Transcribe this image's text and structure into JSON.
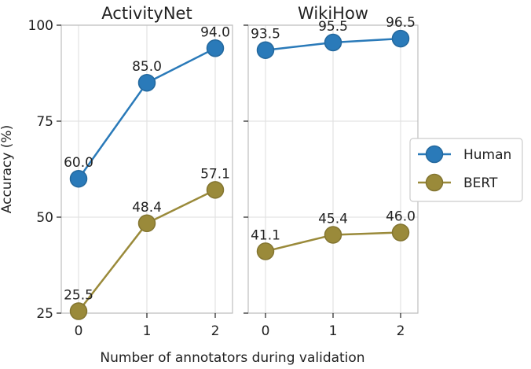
{
  "chart_data": {
    "type": "line",
    "ylabel": "Accuracy (%)",
    "xlabel": "Number of annotators during validation",
    "ylim": [
      25,
      100
    ],
    "yticks": [
      25,
      50,
      75,
      100
    ],
    "categories": [
      "0",
      "1",
      "2"
    ],
    "grid": true,
    "legend_position": "right",
    "legend": [
      {
        "name": "Human",
        "color": "#2a7ab9"
      },
      {
        "name": "BERT",
        "color": "#9a8a3a"
      }
    ],
    "panels": [
      {
        "title": "ActivityNet",
        "series": [
          {
            "name": "Human",
            "values": [
              60.0,
              85.0,
              94.0
            ],
            "labels": [
              "60.0",
              "85.0",
              "94.0"
            ]
          },
          {
            "name": "BERT",
            "values": [
              25.5,
              48.4,
              57.1
            ],
            "labels": [
              "25.5",
              "48.4",
              "57.1"
            ]
          }
        ]
      },
      {
        "title": "WikiHow",
        "series": [
          {
            "name": "Human",
            "values": [
              93.5,
              95.5,
              96.5
            ],
            "labels": [
              "93.5",
              "95.5",
              "96.5"
            ]
          },
          {
            "name": "BERT",
            "values": [
              41.1,
              45.4,
              46.0
            ],
            "labels": [
              "41.1",
              "45.4",
              "46.0"
            ]
          }
        ]
      }
    ]
  }
}
